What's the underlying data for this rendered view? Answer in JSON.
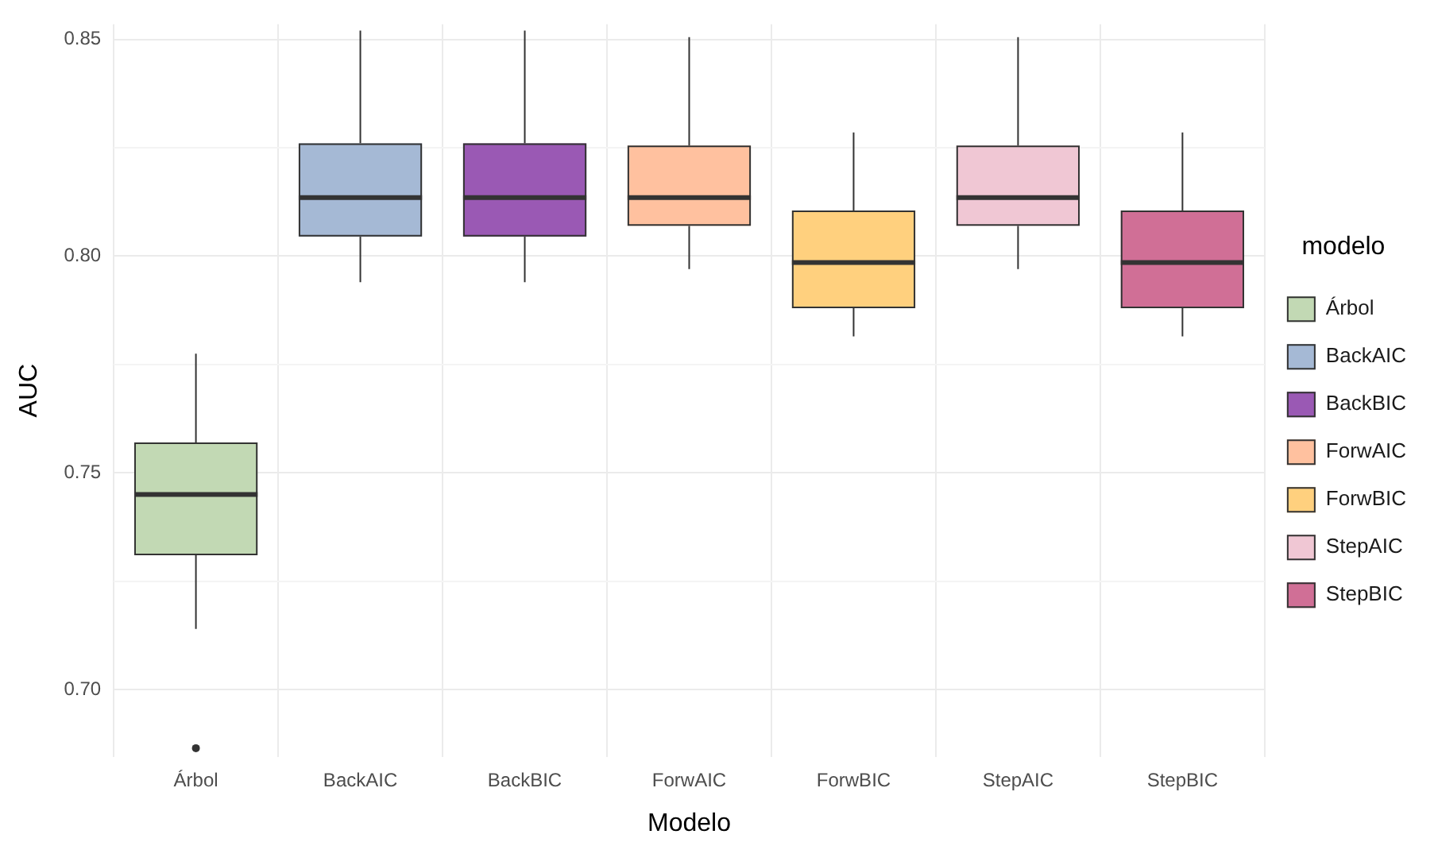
{
  "chart_data": {
    "type": "box",
    "xlabel": "Modelo",
    "ylabel": "AUC",
    "legend_title": "modelo",
    "legend": "right",
    "grid": true,
    "categories": [
      "Árbol",
      "BackAIC",
      "BackBIC",
      "ForwAIC",
      "ForwBIC",
      "StepAIC",
      "StepBIC"
    ],
    "series": [
      {
        "name": "Árbol",
        "color": "#c2d9b4",
        "boxes": [
          {
            "low": 0.714,
            "q1": 0.731,
            "median": 0.745,
            "q3": 0.757,
            "high": 0.7775,
            "outliers": [
              0.6865
            ]
          },
          null,
          null,
          null,
          null,
          null,
          null
        ]
      },
      {
        "name": "BackAIC",
        "color": "#a5b9d5",
        "boxes": [
          null,
          {
            "low": 0.794,
            "q1": 0.8045,
            "median": 0.8135,
            "q3": 0.826,
            "high": 0.852
          },
          null,
          null,
          null,
          null,
          null
        ]
      },
      {
        "name": "BackBIC",
        "color": "#9a59b4",
        "boxes": [
          null,
          null,
          {
            "low": 0.794,
            "q1": 0.8045,
            "median": 0.8135,
            "q3": 0.826,
            "high": 0.852
          },
          null,
          null,
          null,
          null
        ]
      },
      {
        "name": "ForwAIC",
        "color": "#ffc19f",
        "boxes": [
          null,
          null,
          null,
          {
            "low": 0.797,
            "q1": 0.807,
            "median": 0.8135,
            "q3": 0.8255,
            "high": 0.8505
          },
          null,
          null,
          null
        ]
      },
      {
        "name": "ForwBIC",
        "color": "#ffd07e",
        "boxes": [
          null,
          null,
          null,
          null,
          {
            "low": 0.7815,
            "q1": 0.788,
            "median": 0.7985,
            "q3": 0.8105,
            "high": 0.8285
          },
          null,
          null
        ]
      },
      {
        "name": "StepAIC",
        "color": "#f0c7d4",
        "boxes": [
          null,
          null,
          null,
          null,
          null,
          {
            "low": 0.797,
            "q1": 0.807,
            "median": 0.8135,
            "q3": 0.8255,
            "high": 0.8505
          },
          null
        ]
      },
      {
        "name": "StepBIC",
        "color": "#d06f96",
        "boxes": [
          null,
          null,
          null,
          null,
          null,
          null,
          {
            "low": 0.7815,
            "q1": 0.788,
            "median": 0.7985,
            "q3": 0.8105,
            "high": 0.8285
          }
        ]
      }
    ],
    "ylim": [
      0.6845,
      0.8535
    ],
    "yticks": [
      {
        "value": 0.7,
        "label": "0.70"
      },
      {
        "value": 0.725,
        "label": null
      },
      {
        "value": 0.75,
        "label": "0.75"
      },
      {
        "value": 0.775,
        "label": null
      },
      {
        "value": 0.8,
        "label": "0.80"
      },
      {
        "value": 0.825,
        "label": null
      },
      {
        "value": 0.85,
        "label": "0.85"
      }
    ]
  }
}
